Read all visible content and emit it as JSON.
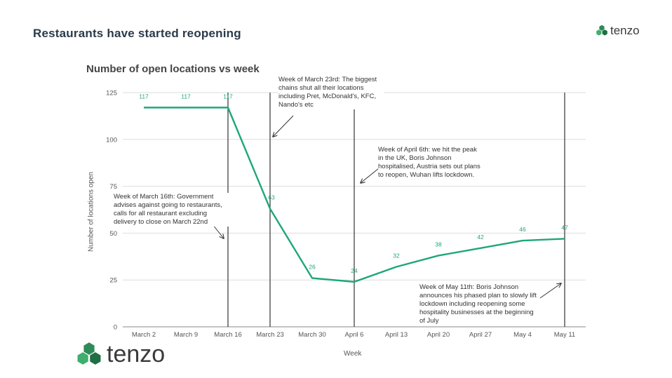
{
  "slide": {
    "title": "Restaurants  have started  reopening",
    "brand": "tenzo"
  },
  "chart_data": {
    "type": "line",
    "title": "Number of open locations vs week",
    "xlabel": "Week",
    "ylabel": "Number of locations open",
    "categories": [
      "March 2",
      "March 9",
      "March 16",
      "March 23",
      "March 30",
      "April 6",
      "April 13",
      "April 20",
      "April 27",
      "May 4",
      "May 11"
    ],
    "values": [
      117,
      117,
      117,
      63,
      26,
      24,
      32,
      38,
      42,
      46,
      47
    ],
    "data_labels": [
      "117",
      "117",
      "117",
      "63",
      "26",
      "24",
      "32",
      "38",
      "42",
      "46",
      "47"
    ],
    "ylim": [
      0,
      125
    ],
    "yticks": [
      0,
      25,
      50,
      75,
      100,
      125
    ],
    "grid": true,
    "line_color": "#1fa67a",
    "vlines": [
      "March 16",
      "March 23",
      "April 6",
      "May 11"
    ],
    "annotations": [
      {
        "text": "Week of March 23rd: The biggest chains shut all their locations including Pret, McDonald's, KFC, Nando's etc"
      },
      {
        "text": "Week of April 6th: we hit the peak in the UK, Boris Johnson hospitalised, Austria sets out plans to reopen, Wuhan lifts lockdown."
      },
      {
        "text": "Week of March 16th: Government advises against going to restaurants, calls for all restaurant excluding delivery to close on March 22nd"
      },
      {
        "text": "Week of May 11th: Boris Johnson announces his phased plan to slowly lift lockdown including reopening some hospitality businesses at the beginning of July"
      }
    ]
  }
}
